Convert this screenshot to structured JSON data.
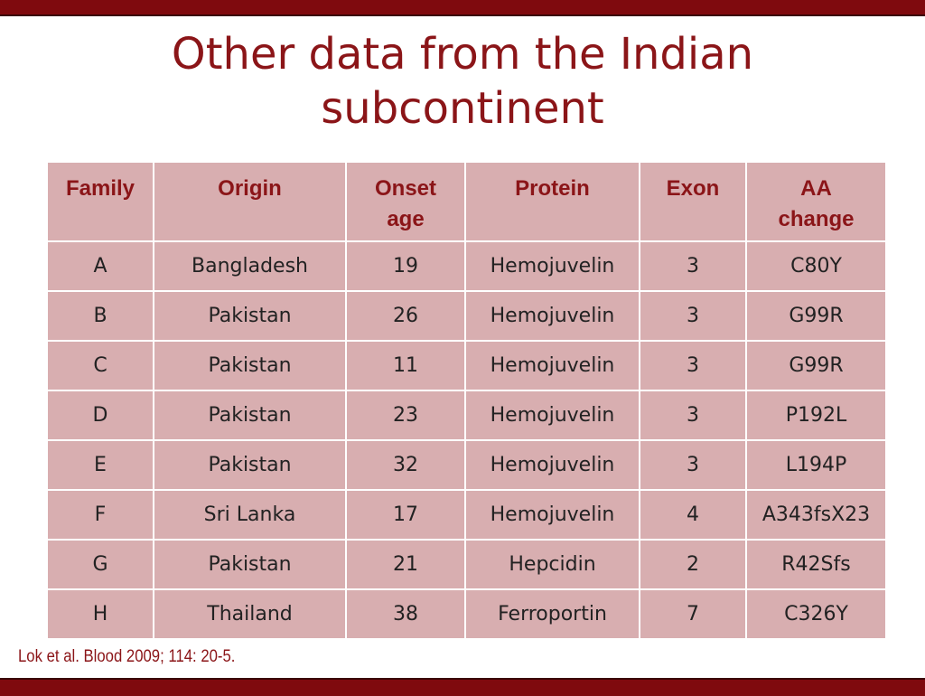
{
  "title": "Other data from the Indian subcontinent",
  "table": {
    "headers": [
      "Family",
      "Origin",
      "Onset age",
      "Protein",
      "Exon",
      "AA change"
    ],
    "rows": [
      [
        "A",
        "Bangladesh",
        "19",
        "Hemojuvelin",
        "3",
        "C80Y"
      ],
      [
        "B",
        "Pakistan",
        "26",
        "Hemojuvelin",
        "3",
        "G99R"
      ],
      [
        "C",
        "Pakistan",
        "11",
        "Hemojuvelin",
        "3",
        "G99R"
      ],
      [
        "D",
        "Pakistan",
        "23",
        "Hemojuvelin",
        "3",
        "P192L"
      ],
      [
        "E",
        "Pakistan",
        "32",
        "Hemojuvelin",
        "3",
        "L194P"
      ],
      [
        "F",
        "Sri Lanka",
        "17",
        "Hemojuvelin",
        "4",
        "A343fsX23"
      ],
      [
        "G",
        "Pakistan",
        "21",
        "Hepcidin",
        "2",
        "R42Sfs"
      ],
      [
        "H",
        "Thailand",
        "38",
        "Ferroportin",
        "7",
        "C326Y"
      ]
    ]
  },
  "footnote": "Lok et al. Blood 2009; 114: 20-5."
}
